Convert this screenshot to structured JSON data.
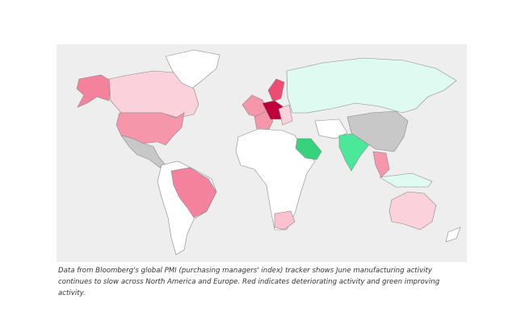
{
  "caption": "Data from Bloomberg's global PMI (purchasing managers' index) tracker shows June manufacturing activity continues to slow across North America and Europe. Red indicates deteriorating activity and green improving activity."
}
